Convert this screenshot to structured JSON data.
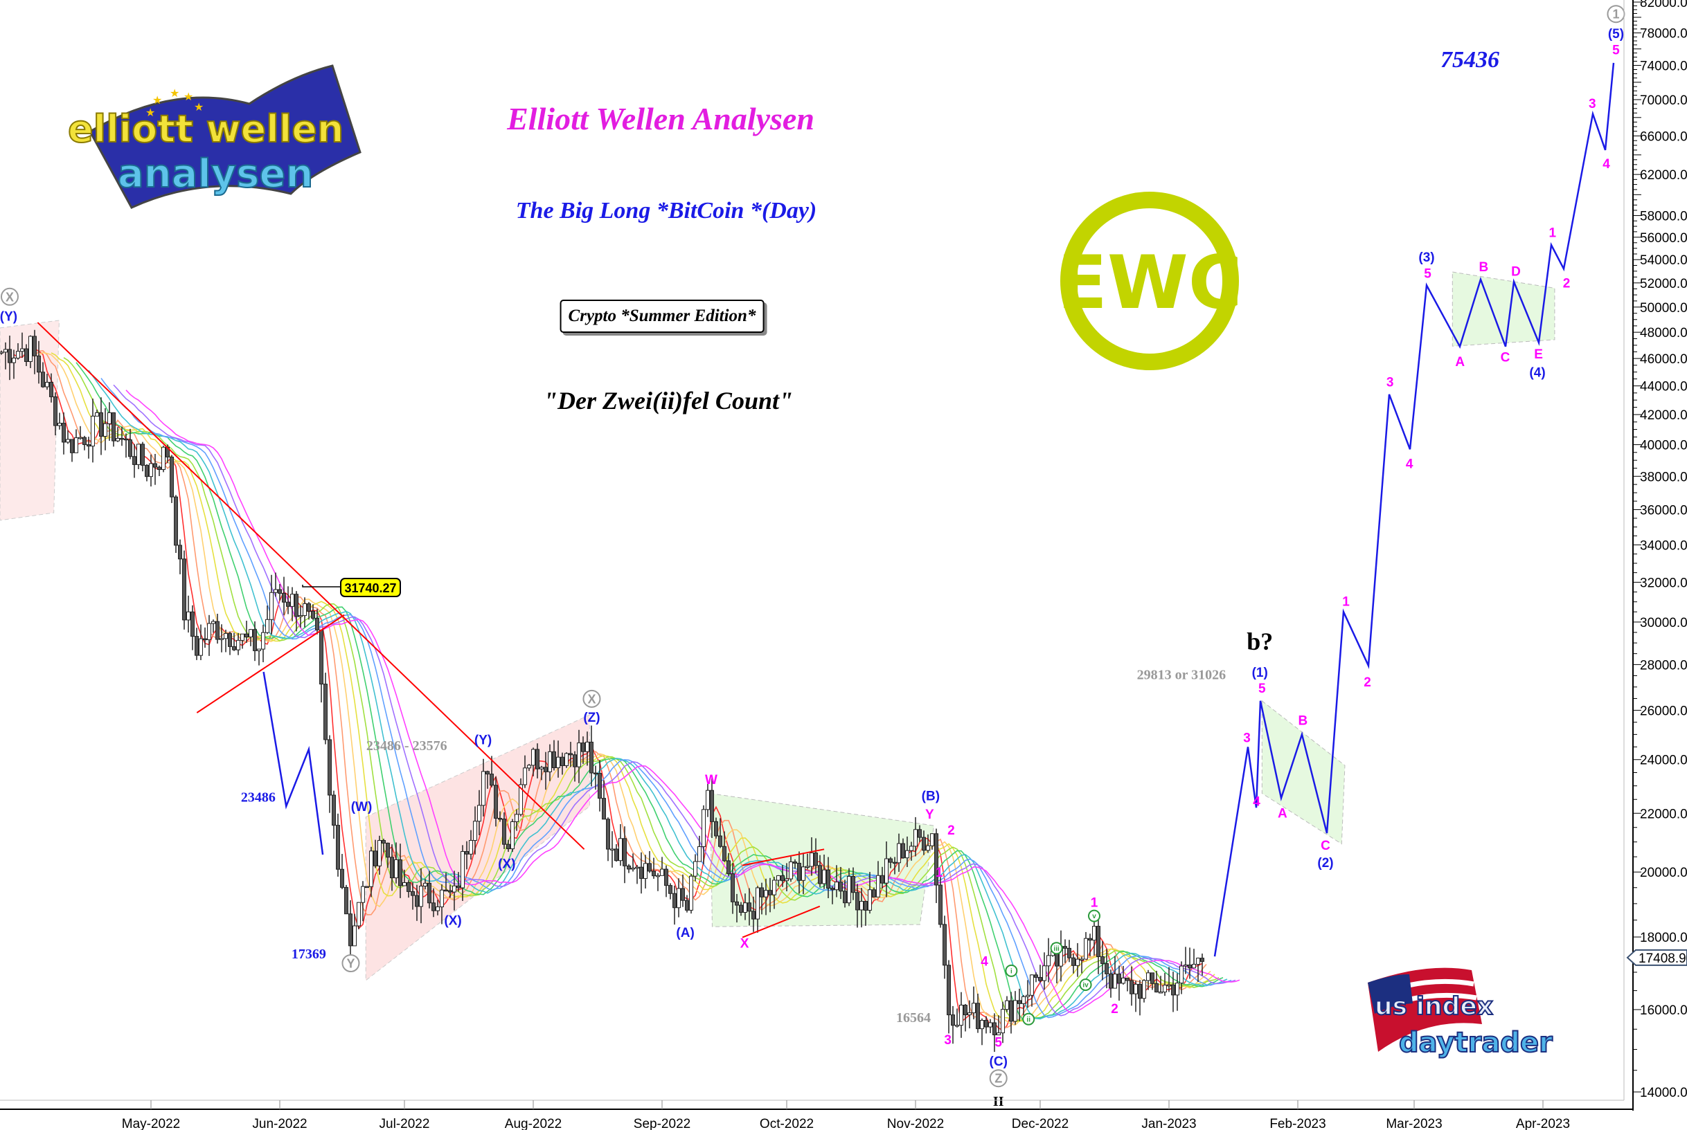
{
  "titles": {
    "main": "Elliott Wellen Analysen",
    "subtitle": "The Big Long *BitCoin *(Day)",
    "edition": "Crypto *Summer Edition*",
    "count": "\"Der Zwei(ii)fel Count\"",
    "target": "75436"
  },
  "logos": {
    "ewa": "elliott wellen analysen",
    "ewc": "EWC",
    "usid": "us index daytrader"
  },
  "colors": {
    "forecast": "#1a1ae6",
    "wave_minor": "#ff00ff",
    "trendline": "#ff0000",
    "ewc": "#c2d400",
    "candle": "#333333"
  },
  "chart_data": {
    "type": "candlestick",
    "instrument": "BitCoin",
    "interval": "Day",
    "y_scale": "log",
    "ylim": [
      14000,
      82000
    ],
    "y_ticks": [
      "14000.00",
      "16000.00",
      "18000.00",
      "20000.00",
      "22000.00",
      "24000.00",
      "26000.00",
      "28000.00",
      "30000.00",
      "32000.00",
      "34000.00",
      "36000.00",
      "38000.00",
      "40000.00",
      "42000.00",
      "44000.00",
      "46000.00",
      "48000.00",
      "50000.00",
      "52000.00",
      "54000.00",
      "56000.00",
      "58000.00",
      "62000.00",
      "66000.00",
      "70000.00",
      "74000.00",
      "78000.00",
      "82000.00"
    ],
    "x_ticks": [
      "May-2022",
      "Jun-2022",
      "Jul-2022",
      "Aug-2022",
      "Sep-2022",
      "Oct-2022",
      "Nov-2022",
      "Dec-2022",
      "Jan-2023",
      "Feb-2023",
      "Mar-2023",
      "Apr-2023"
    ],
    "last_price": "17408.90",
    "callout": "31740.27",
    "price_path": [
      [
        "2022-03-26",
        46500
      ],
      [
        "2022-04-02",
        46800
      ],
      [
        "2022-04-11",
        40000
      ],
      [
        "2022-04-20",
        41500
      ],
      [
        "2022-04-30",
        38500
      ],
      [
        "2022-05-05",
        39500
      ],
      [
        "2022-05-09",
        30500
      ],
      [
        "2022-05-12",
        28800
      ],
      [
        "2022-05-16",
        29800
      ],
      [
        "2022-05-27",
        28800
      ],
      [
        "2022-05-31",
        31700
      ],
      [
        "2022-06-07",
        30500
      ],
      [
        "2022-06-10",
        29000
      ],
      [
        "2022-06-13",
        22500
      ],
      [
        "2022-06-18",
        18000
      ],
      [
        "2022-06-25",
        21200
      ],
      [
        "2022-07-01",
        19300
      ],
      [
        "2022-07-13",
        19200
      ],
      [
        "2022-07-20",
        23500
      ],
      [
        "2022-07-26",
        21000
      ],
      [
        "2022-07-30",
        24000
      ],
      [
        "2022-08-14",
        24400
      ],
      [
        "2022-08-19",
        21000
      ],
      [
        "2022-08-30",
        20000
      ],
      [
        "2022-09-07",
        18800
      ],
      [
        "2022-09-12",
        22400
      ],
      [
        "2022-09-19",
        18500
      ],
      [
        "2022-10-05",
        20300
      ],
      [
        "2022-10-20",
        19100
      ],
      [
        "2022-10-29",
        20800
      ],
      [
        "2022-11-05",
        21300
      ],
      [
        "2022-11-09",
        16000
      ],
      [
        "2022-11-21",
        15700
      ],
      [
        "2022-12-01",
        17000
      ],
      [
        "2022-12-14",
        17900
      ],
      [
        "2022-12-19",
        16600
      ],
      [
        "2023-01-01",
        16600
      ],
      [
        "2023-01-09",
        17400
      ]
    ],
    "forecast_path": [
      [
        "2023-01-12",
        17440
      ],
      [
        "2023-01-20",
        24500
      ],
      [
        "2023-01-22",
        22200
      ],
      [
        "2023-01-23",
        26400
      ],
      [
        "2023-01-28",
        22550
      ],
      [
        "2023-02-02",
        25000
      ],
      [
        "2023-02-08",
        21300
      ],
      [
        "2023-02-12",
        30500
      ],
      [
        "2023-02-18",
        27950
      ],
      [
        "2023-02-23",
        43400
      ],
      [
        "2023-02-28",
        39700
      ],
      [
        "2023-03-04",
        51800
      ],
      [
        "2023-03-12",
        46900
      ],
      [
        "2023-03-17",
        52300
      ],
      [
        "2023-03-23",
        46900
      ],
      [
        "2023-03-25",
        52100
      ],
      [
        "2023-03-31",
        47200
      ],
      [
        "2023-04-03",
        55300
      ],
      [
        "2023-04-06",
        53200
      ],
      [
        "2023-04-13",
        68400
      ],
      [
        "2023-04-16",
        64500
      ],
      [
        "2023-04-18",
        74300
      ]
    ],
    "wave_labels": [
      {
        "t": "X",
        "c": "grey",
        "circle": true
      },
      {
        "t": "(Y)",
        "c": "blue"
      },
      {
        "t": "23486",
        "c": "blue",
        "serif": true
      },
      {
        "t": "17369",
        "c": "blue",
        "serif": true
      },
      {
        "t": "Y",
        "c": "grey",
        "circle": true
      },
      {
        "t": "(W)",
        "c": "blue"
      },
      {
        "t": "(X)",
        "c": "blue"
      },
      {
        "t": "(X)",
        "c": "blue"
      },
      {
        "t": "(Y)",
        "c": "blue"
      },
      {
        "t": "23486 - 23576",
        "c": "grey",
        "serif": true
      },
      {
        "t": "X",
        "c": "grey",
        "circle": true
      },
      {
        "t": "(Z)",
        "c": "blue"
      },
      {
        "t": "W",
        "c": "magenta"
      },
      {
        "t": "(A)",
        "c": "blue"
      },
      {
        "t": "X",
        "c": "magenta"
      },
      {
        "t": "(B)",
        "c": "blue"
      },
      {
        "t": "Y",
        "c": "magenta"
      },
      {
        "t": "2",
        "c": "magenta"
      },
      {
        "t": "1",
        "c": "magenta"
      },
      {
        "t": "3",
        "c": "magenta"
      },
      {
        "t": "4",
        "c": "magenta"
      },
      {
        "t": "5",
        "c": "magenta"
      },
      {
        "t": "(C)",
        "c": "blue"
      },
      {
        "t": "Z",
        "c": "grey",
        "circle": true
      },
      {
        "t": "II",
        "c": "black",
        "serif": true
      },
      {
        "t": "16564",
        "c": "grey",
        "serif": true
      },
      {
        "t": "i",
        "c": "green",
        "circle": true
      },
      {
        "t": "ii",
        "c": "green",
        "circle": true
      },
      {
        "t": "iii",
        "c": "green",
        "circle": true
      },
      {
        "t": "iv",
        "c": "green",
        "circle": true
      },
      {
        "t": "v",
        "c": "green",
        "circle": true
      },
      {
        "t": "1",
        "c": "magenta"
      },
      {
        "t": "2",
        "c": "magenta"
      },
      {
        "t": "b?",
        "c": "black",
        "serif": true,
        "big": true
      },
      {
        "t": "29813 or 31026",
        "c": "grey",
        "serif": true
      },
      {
        "t": "(1)",
        "c": "blue"
      },
      {
        "t": "5",
        "c": "magenta"
      },
      {
        "t": "3",
        "c": "magenta"
      },
      {
        "t": "4",
        "c": "magenta"
      },
      {
        "t": "A",
        "c": "magenta"
      },
      {
        "t": "B",
        "c": "magenta"
      },
      {
        "t": "C",
        "c": "magenta"
      },
      {
        "t": "(2)",
        "c": "blue"
      },
      {
        "t": "1",
        "c": "magenta"
      },
      {
        "t": "2",
        "c": "magenta"
      },
      {
        "t": "3",
        "c": "magenta"
      },
      {
        "t": "4",
        "c": "magenta"
      },
      {
        "t": "(3)",
        "c": "blue"
      },
      {
        "t": "5",
        "c": "magenta"
      },
      {
        "t": "A",
        "c": "magenta"
      },
      {
        "t": "B",
        "c": "magenta"
      },
      {
        "t": "C",
        "c": "magenta"
      },
      {
        "t": "D",
        "c": "magenta"
      },
      {
        "t": "E",
        "c": "magenta"
      },
      {
        "t": "(4)",
        "c": "blue"
      },
      {
        "t": "1",
        "c": "magenta"
      },
      {
        "t": "2",
        "c": "magenta"
      },
      {
        "t": "3",
        "c": "magenta"
      },
      {
        "t": "4",
        "c": "magenta"
      },
      {
        "t": "5",
        "c": "magenta"
      },
      {
        "t": "(5)",
        "c": "blue"
      },
      {
        "t": "1",
        "c": "grey",
        "circle": true
      }
    ]
  }
}
